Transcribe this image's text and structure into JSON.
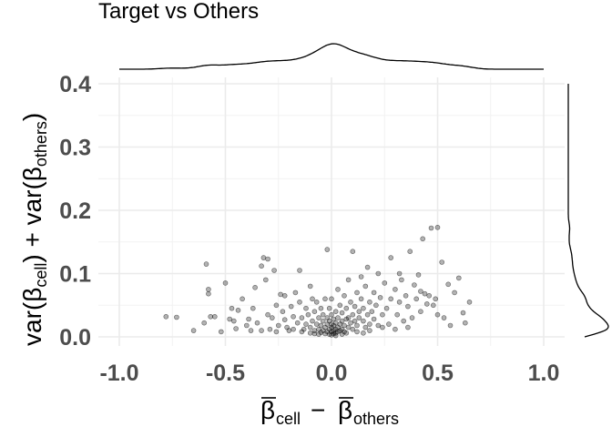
{
  "chart_data": {
    "type": "scatter",
    "title": "Target vs Others",
    "xlabel": {
      "base": "β",
      "first_subscript": "cell",
      "operator": "−",
      "second_subscript": "others"
    },
    "ylabel": {
      "parts": [
        "var(β",
        "cell",
        ") + var(β",
        "others",
        ")"
      ]
    },
    "xlim": [
      -1.0,
      1.0
    ],
    "ylim": [
      0,
      0.4
    ],
    "xticks": [
      "-1.0",
      "-0.5",
      "0.0",
      "0.5",
      "1.0"
    ],
    "yticks": [
      "0.0",
      "0.1",
      "0.2",
      "0.3",
      "0.4"
    ],
    "grid": true,
    "point_color": "#000000",
    "point_alpha": 0.3,
    "marginal_x_density": true,
    "marginal_y_density": true,
    "points": [
      [
        -0.78,
        0.032
      ],
      [
        -0.73,
        0.031
      ],
      [
        -0.65,
        0.01
      ],
      [
        -0.6,
        0.022
      ],
      [
        -0.59,
        0.115
      ],
      [
        -0.58,
        0.075
      ],
      [
        -0.58,
        0.068
      ],
      [
        -0.57,
        0.032
      ],
      [
        -0.52,
        0.008
      ],
      [
        -0.5,
        0.085
      ],
      [
        -0.48,
        0.028
      ],
      [
        -0.47,
        0.045
      ],
      [
        -0.46,
        0.025
      ],
      [
        -0.45,
        0.013
      ],
      [
        -0.42,
        0.06
      ],
      [
        -0.4,
        0.018
      ],
      [
        -0.39,
        0.028
      ],
      [
        -0.38,
        0.01
      ],
      [
        -0.37,
        0.045
      ],
      [
        -0.36,
        0.078
      ],
      [
        -0.35,
        0.022
      ],
      [
        -0.33,
        0.112
      ],
      [
        -0.32,
        0.125
      ],
      [
        -0.31,
        0.09
      ],
      [
        -0.3,
        0.035
      ],
      [
        -0.3,
        0.123
      ],
      [
        -0.29,
        0.012
      ],
      [
        -0.28,
        0.03
      ],
      [
        -0.27,
        0.105
      ],
      [
        -0.26,
        0.05
      ],
      [
        -0.25,
        0.018
      ],
      [
        -0.24,
        0.067
      ],
      [
        -0.23,
        0.04
      ],
      [
        -0.22,
        0.027
      ],
      [
        -0.22,
        0.065
      ],
      [
        -0.21,
        0.015
      ],
      [
        -0.2,
        0.01
      ],
      [
        -0.19,
        0.048
      ],
      [
        -0.18,
        0.032
      ],
      [
        -0.17,
        0.07
      ],
      [
        -0.16,
        0.022
      ],
      [
        -0.15,
        0.105
      ],
      [
        -0.15,
        0.055
      ],
      [
        -0.14,
        0.03
      ],
      [
        -0.13,
        0.012
      ],
      [
        -0.12,
        0.045
      ],
      [
        -0.12,
        0.02
      ],
      [
        -0.11,
        0.035
      ],
      [
        -0.1,
        0.08
      ],
      [
        -0.1,
        0.015
      ],
      [
        -0.09,
        0.06
      ],
      [
        -0.09,
        0.025
      ],
      [
        -0.08,
        0.04
      ],
      [
        -0.08,
        0.01
      ],
      [
        -0.07,
        0.02
      ],
      [
        -0.07,
        0.055
      ],
      [
        -0.06,
        0.03
      ],
      [
        -0.06,
        0.012
      ],
      [
        -0.05,
        0.018
      ],
      [
        -0.05,
        0.045
      ],
      [
        -0.05,
        0.007
      ],
      [
        -0.04,
        0.025
      ],
      [
        -0.04,
        0.01
      ],
      [
        -0.04,
        0.035
      ],
      [
        -0.03,
        0.015
      ],
      [
        -0.03,
        0.005
      ],
      [
        -0.03,
        0.06
      ],
      [
        -0.02,
        0.02
      ],
      [
        -0.02,
        0.008
      ],
      [
        -0.02,
        0.03
      ],
      [
        -0.02,
        0.138
      ],
      [
        -0.01,
        0.012
      ],
      [
        -0.01,
        0.004
      ],
      [
        -0.01,
        0.025
      ],
      [
        -0.01,
        0.045
      ],
      [
        0.0,
        0.008
      ],
      [
        0.0,
        0.015
      ],
      [
        0.0,
        0.003
      ],
      [
        0.0,
        0.02
      ],
      [
        0.0,
        0.035
      ],
      [
        0.0,
        0.06
      ],
      [
        0.01,
        0.01
      ],
      [
        0.01,
        0.005
      ],
      [
        0.01,
        0.018
      ],
      [
        0.01,
        0.028
      ],
      [
        0.02,
        0.012
      ],
      [
        0.02,
        0.006
      ],
      [
        0.02,
        0.04
      ],
      [
        0.02,
        0.022
      ],
      [
        0.03,
        0.015
      ],
      [
        0.03,
        0.008
      ],
      [
        0.03,
        0.03
      ],
      [
        0.03,
        0.075
      ],
      [
        0.04,
        0.02
      ],
      [
        0.04,
        0.01
      ],
      [
        0.04,
        0.05
      ],
      [
        0.05,
        0.012
      ],
      [
        0.05,
        0.025
      ],
      [
        0.05,
        0.038
      ],
      [
        0.06,
        0.018
      ],
      [
        0.06,
        0.008
      ],
      [
        0.06,
        0.065
      ],
      [
        0.07,
        0.028
      ],
      [
        0.07,
        0.045
      ],
      [
        0.08,
        0.015
      ],
      [
        0.08,
        0.03
      ],
      [
        0.08,
        0.09
      ],
      [
        0.09,
        0.022
      ],
      [
        0.09,
        0.055
      ],
      [
        0.1,
        0.035
      ],
      [
        0.1,
        0.012
      ],
      [
        0.1,
        0.135
      ],
      [
        0.11,
        0.048
      ],
      [
        0.11,
        0.025
      ],
      [
        0.12,
        0.018
      ],
      [
        0.12,
        0.07
      ],
      [
        0.13,
        0.04
      ],
      [
        0.13,
        0.03
      ],
      [
        0.14,
        0.06
      ],
      [
        0.14,
        0.095
      ],
      [
        0.15,
        0.025
      ],
      [
        0.15,
        0.045
      ],
      [
        0.16,
        0.08
      ],
      [
        0.16,
        0.015
      ],
      [
        0.17,
        0.035
      ],
      [
        0.17,
        0.11
      ],
      [
        0.18,
        0.055
      ],
      [
        0.18,
        0.02
      ],
      [
        0.19,
        0.04
      ],
      [
        0.2,
        0.07
      ],
      [
        0.2,
        0.028
      ],
      [
        0.21,
        0.05
      ],
      [
        0.22,
        0.1
      ],
      [
        0.22,
        0.018
      ],
      [
        0.23,
        0.062
      ],
      [
        0.24,
        0.035
      ],
      [
        0.25,
        0.085
      ],
      [
        0.26,
        0.045
      ],
      [
        0.27,
        0.02
      ],
      [
        0.28,
        0.125
      ],
      [
        0.28,
        0.06
      ],
      [
        0.3,
        0.075
      ],
      [
        0.31,
        0.035
      ],
      [
        0.32,
        0.1
      ],
      [
        0.32,
        0.055
      ],
      [
        0.33,
        0.09
      ],
      [
        0.34,
        0.025
      ],
      [
        0.35,
        0.065
      ],
      [
        0.36,
        0.048
      ],
      [
        0.37,
        0.135
      ],
      [
        0.38,
        0.03
      ],
      [
        0.39,
        0.082
      ],
      [
        0.4,
        0.06
      ],
      [
        0.41,
        0.098
      ],
      [
        0.42,
        0.072
      ],
      [
        0.42,
        0.04
      ],
      [
        0.43,
        0.155
      ],
      [
        0.44,
        0.068
      ],
      [
        0.45,
        0.052
      ],
      [
        0.46,
        0.065
      ],
      [
        0.47,
        0.172
      ],
      [
        0.48,
        0.05
      ],
      [
        0.49,
        0.06
      ],
      [
        0.5,
        0.173
      ],
      [
        0.5,
        0.035
      ],
      [
        0.52,
        0.118
      ],
      [
        0.53,
        0.03
      ],
      [
        0.55,
        0.083
      ],
      [
        0.56,
        0.018
      ],
      [
        0.58,
        0.07
      ],
      [
        0.6,
        0.093
      ],
      [
        0.62,
        0.038
      ],
      [
        0.63,
        0.022
      ],
      [
        0.65,
        0.055
      ],
      [
        -0.08,
        0.005
      ],
      [
        -0.06,
        0.004
      ],
      [
        0.02,
        0.002
      ],
      [
        0.05,
        0.004
      ],
      [
        0.07,
        0.006
      ],
      [
        -0.1,
        0.006
      ],
      [
        0.12,
        0.008
      ],
      [
        -0.14,
        0.008
      ],
      [
        0.15,
        0.006
      ],
      [
        0.18,
        0.01
      ],
      [
        -0.18,
        0.012
      ],
      [
        -0.26,
        0.008
      ],
      [
        0.24,
        0.015
      ],
      [
        -0.33,
        0.01
      ],
      [
        0.3,
        0.012
      ],
      [
        0.36,
        0.015
      ],
      [
        -0.44,
        0.042
      ],
      [
        -0.55,
        0.032
      ]
    ]
  }
}
